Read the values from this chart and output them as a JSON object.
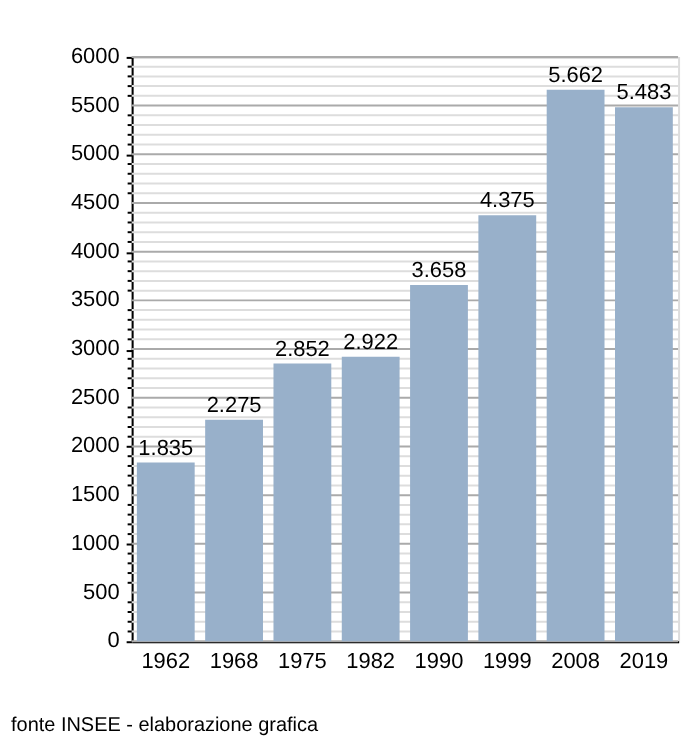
{
  "chart_data": {
    "type": "bar",
    "categories": [
      "1962",
      "1968",
      "1975",
      "1982",
      "1990",
      "1999",
      "2008",
      "2019"
    ],
    "values": [
      1835,
      2275,
      2852,
      2922,
      3658,
      4375,
      5662,
      5483
    ],
    "value_labels": [
      "1.835",
      "2.275",
      "2.852",
      "2.922",
      "3.658",
      "4.375",
      "5.662",
      "5.483"
    ],
    "color": "#98b0ca",
    "ylim": [
      0,
      6000
    ],
    "yticks": [
      0,
      {
        "value": 100,
        "label": null
      },
      {
        "value": 200,
        "label": null
      },
      {
        "value": 300,
        "label": null
      },
      {
        "value": 400,
        "label": null
      },
      500,
      {
        "value": 600,
        "label": null
      },
      {
        "value": 700,
        "label": null
      },
      {
        "value": 800,
        "label": null
      },
      {
        "value": 900,
        "label": null
      },
      1000,
      {
        "value": 1100,
        "label": null
      },
      {
        "value": 1200,
        "label": null
      },
      {
        "value": 1300,
        "label": null
      },
      {
        "value": 1400,
        "label": null
      },
      1500,
      {
        "value": 1600,
        "label": null
      },
      {
        "value": 1700,
        "label": null
      },
      {
        "value": 1800,
        "label": null
      },
      {
        "value": 1900,
        "label": null
      },
      2000,
      {
        "value": 2100,
        "label": null
      },
      {
        "value": 2200,
        "label": null
      },
      {
        "value": 2300,
        "label": null
      },
      {
        "value": 2400,
        "label": null
      },
      2500,
      {
        "value": 2600,
        "label": null
      },
      {
        "value": 2700,
        "label": null
      },
      {
        "value": 2800,
        "label": null
      },
      {
        "value": 2900,
        "label": null
      },
      3000,
      {
        "value": 3100,
        "label": null
      },
      {
        "value": 3200,
        "label": null
      },
      {
        "value": 3300,
        "label": null
      },
      {
        "value": 3400,
        "label": null
      },
      3500,
      {
        "value": 3600,
        "label": null
      },
      {
        "value": 3700,
        "label": null
      },
      {
        "value": 3800,
        "label": null
      },
      {
        "value": 3900,
        "label": null
      },
      4000,
      {
        "value": 4100,
        "label": null
      },
      {
        "value": 4200,
        "label": null
      },
      {
        "value": 4300,
        "label": null
      },
      {
        "value": 4400,
        "label": null
      },
      4500,
      {
        "value": 4600,
        "label": null
      },
      {
        "value": 4700,
        "label": null
      },
      {
        "value": 4800,
        "label": null
      },
      {
        "value": 4900,
        "label": null
      },
      5000,
      {
        "value": 5100,
        "label": null
      },
      {
        "value": 5200,
        "label": null
      },
      {
        "value": 5300,
        "label": null
      },
      {
        "value": 5400,
        "label": null
      },
      5500,
      {
        "value": 5600,
        "label": null
      },
      {
        "value": 5700,
        "label": null
      },
      {
        "value": 5800,
        "label": null
      },
      {
        "value": 5900,
        "label": null
      },
      6000
    ],
    "grid": "y",
    "annotations": [
      "fonte INSEE - elaborazione grafica"
    ]
  }
}
